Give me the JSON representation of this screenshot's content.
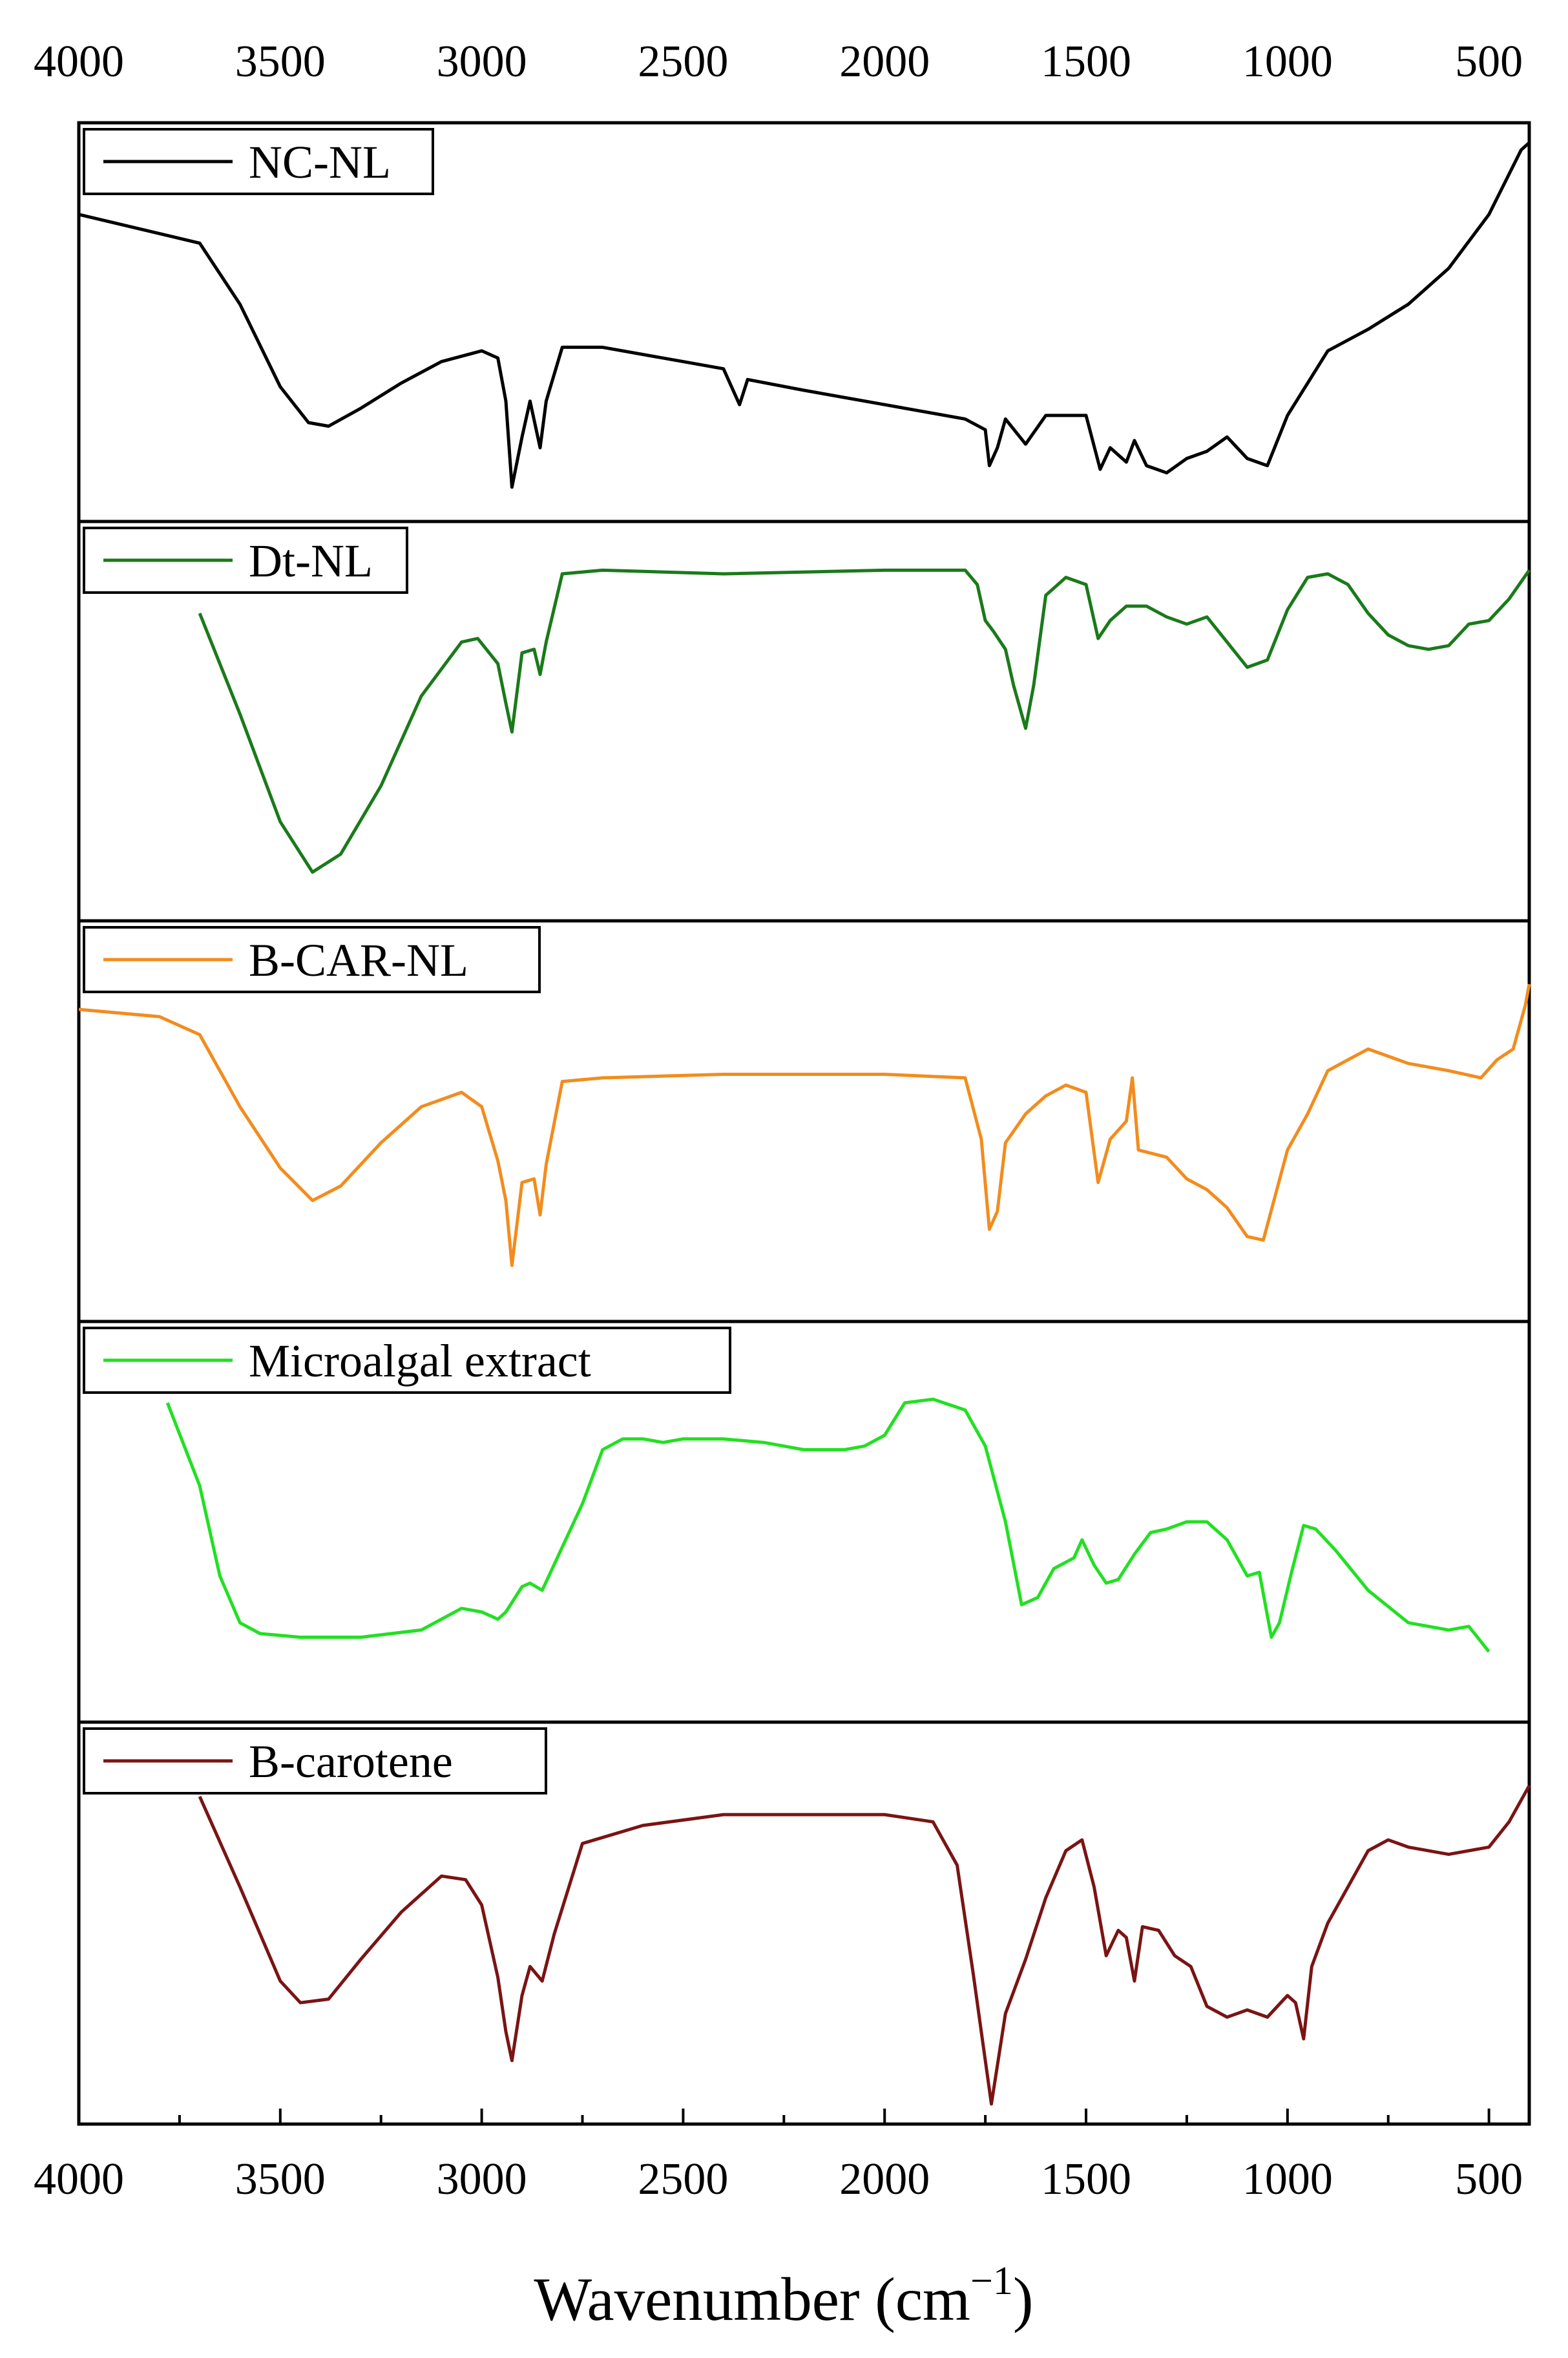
{
  "chart_data": {
    "type": "line",
    "xlabel": "Wavenumber (cm",
    "xlabel_superscript": "−1",
    "xlabel_suffix": ")",
    "xlim": [
      4000,
      400
    ],
    "x_tick_labels": [
      "4000",
      "3500",
      "3000",
      "2500",
      "2000",
      "1500",
      "1000",
      "500"
    ],
    "x_tick_values": [
      4000,
      3500,
      3000,
      2500,
      2000,
      1500,
      1000,
      500
    ],
    "layout": "stacked panels, one spectrum per panel, shared x-axis, no y-axis scale",
    "grid": false,
    "legend_placement": "top-left of each panel",
    "series": [
      {
        "name": "NC-NL",
        "color": "#000000",
        "points": [
          [
            4000,
            0.2
          ],
          [
            3850,
            0.24
          ],
          [
            3700,
            0.28
          ],
          [
            3600,
            0.45
          ],
          [
            3500,
            0.68
          ],
          [
            3430,
            0.78
          ],
          [
            3380,
            0.79
          ],
          [
            3300,
            0.74
          ],
          [
            3200,
            0.67
          ],
          [
            3100,
            0.61
          ],
          [
            3000,
            0.58
          ],
          [
            2960,
            0.6
          ],
          [
            2940,
            0.72
          ],
          [
            2925,
            0.96
          ],
          [
            2900,
            0.82
          ],
          [
            2880,
            0.72
          ],
          [
            2855,
            0.85
          ],
          [
            2840,
            0.72
          ],
          [
            2800,
            0.57
          ],
          [
            2700,
            0.57
          ],
          [
            2500,
            0.61
          ],
          [
            2400,
            0.63
          ],
          [
            2360,
            0.73
          ],
          [
            2340,
            0.66
          ],
          [
            2200,
            0.69
          ],
          [
            2000,
            0.73
          ],
          [
            1800,
            0.77
          ],
          [
            1750,
            0.8
          ],
          [
            1740,
            0.9
          ],
          [
            1720,
            0.85
          ],
          [
            1700,
            0.77
          ],
          [
            1650,
            0.84
          ],
          [
            1600,
            0.76
          ],
          [
            1500,
            0.76
          ],
          [
            1465,
            0.91
          ],
          [
            1440,
            0.85
          ],
          [
            1400,
            0.89
          ],
          [
            1380,
            0.83
          ],
          [
            1350,
            0.9
          ],
          [
            1300,
            0.92
          ],
          [
            1250,
            0.88
          ],
          [
            1200,
            0.86
          ],
          [
            1150,
            0.82
          ],
          [
            1100,
            0.88
          ],
          [
            1050,
            0.9
          ],
          [
            1000,
            0.76
          ],
          [
            900,
            0.58
          ],
          [
            800,
            0.52
          ],
          [
            700,
            0.45
          ],
          [
            600,
            0.35
          ],
          [
            500,
            0.2
          ],
          [
            420,
            0.02
          ],
          [
            400,
            0.0
          ]
        ]
      },
      {
        "name": "Dt-NL",
        "color": "#1a7a1a",
        "points": [
          [
            3700,
            0.2
          ],
          [
            3600,
            0.48
          ],
          [
            3500,
            0.78
          ],
          [
            3420,
            0.92
          ],
          [
            3350,
            0.87
          ],
          [
            3250,
            0.68
          ],
          [
            3150,
            0.43
          ],
          [
            3050,
            0.28
          ],
          [
            3010,
            0.27
          ],
          [
            2960,
            0.34
          ],
          [
            2940,
            0.45
          ],
          [
            2925,
            0.53
          ],
          [
            2900,
            0.31
          ],
          [
            2870,
            0.3
          ],
          [
            2855,
            0.37
          ],
          [
            2840,
            0.28
          ],
          [
            2800,
            0.09
          ],
          [
            2700,
            0.08
          ],
          [
            2400,
            0.09
          ],
          [
            2000,
            0.08
          ],
          [
            1800,
            0.08
          ],
          [
            1770,
            0.12
          ],
          [
            1750,
            0.22
          ],
          [
            1730,
            0.25
          ],
          [
            1700,
            0.3
          ],
          [
            1680,
            0.4
          ],
          [
            1650,
            0.52
          ],
          [
            1630,
            0.4
          ],
          [
            1600,
            0.15
          ],
          [
            1550,
            0.1
          ],
          [
            1500,
            0.12
          ],
          [
            1470,
            0.27
          ],
          [
            1440,
            0.22
          ],
          [
            1400,
            0.18
          ],
          [
            1350,
            0.18
          ],
          [
            1300,
            0.21
          ],
          [
            1250,
            0.23
          ],
          [
            1200,
            0.21
          ],
          [
            1150,
            0.28
          ],
          [
            1100,
            0.35
          ],
          [
            1050,
            0.33
          ],
          [
            1000,
            0.19
          ],
          [
            950,
            0.1
          ],
          [
            900,
            0.09
          ],
          [
            850,
            0.12
          ],
          [
            800,
            0.2
          ],
          [
            750,
            0.26
          ],
          [
            700,
            0.29
          ],
          [
            650,
            0.3
          ],
          [
            600,
            0.29
          ],
          [
            550,
            0.23
          ],
          [
            500,
            0.22
          ],
          [
            450,
            0.16
          ],
          [
            400,
            0.08
          ]
        ]
      },
      {
        "name": "B-CAR-NL",
        "color": "#f28c1e",
        "points": [
          [
            4000,
            0.19
          ],
          [
            3800,
            0.21
          ],
          [
            3700,
            0.26
          ],
          [
            3600,
            0.46
          ],
          [
            3500,
            0.63
          ],
          [
            3420,
            0.72
          ],
          [
            3350,
            0.68
          ],
          [
            3250,
            0.56
          ],
          [
            3150,
            0.46
          ],
          [
            3050,
            0.42
          ],
          [
            3000,
            0.46
          ],
          [
            2960,
            0.61
          ],
          [
            2940,
            0.72
          ],
          [
            2925,
            0.9
          ],
          [
            2900,
            0.67
          ],
          [
            2870,
            0.66
          ],
          [
            2855,
            0.76
          ],
          [
            2840,
            0.62
          ],
          [
            2800,
            0.39
          ],
          [
            2700,
            0.38
          ],
          [
            2400,
            0.37
          ],
          [
            2000,
            0.37
          ],
          [
            1800,
            0.38
          ],
          [
            1760,
            0.55
          ],
          [
            1740,
            0.8
          ],
          [
            1720,
            0.75
          ],
          [
            1700,
            0.56
          ],
          [
            1650,
            0.48
          ],
          [
            1600,
            0.43
          ],
          [
            1550,
            0.4
          ],
          [
            1500,
            0.42
          ],
          [
            1470,
            0.67
          ],
          [
            1440,
            0.55
          ],
          [
            1400,
            0.5
          ],
          [
            1385,
            0.38
          ],
          [
            1370,
            0.58
          ],
          [
            1300,
            0.6
          ],
          [
            1250,
            0.66
          ],
          [
            1200,
            0.69
          ],
          [
            1150,
            0.74
          ],
          [
            1100,
            0.82
          ],
          [
            1060,
            0.83
          ],
          [
            1000,
            0.58
          ],
          [
            950,
            0.48
          ],
          [
            900,
            0.36
          ],
          [
            850,
            0.33
          ],
          [
            800,
            0.3
          ],
          [
            700,
            0.34
          ],
          [
            600,
            0.36
          ],
          [
            520,
            0.38
          ],
          [
            480,
            0.33
          ],
          [
            440,
            0.3
          ],
          [
            410,
            0.18
          ],
          [
            400,
            0.12
          ]
        ]
      },
      {
        "name": "Microalgal extract",
        "color": "#22e022",
        "points": [
          [
            3780,
            0.17
          ],
          [
            3700,
            0.4
          ],
          [
            3650,
            0.65
          ],
          [
            3600,
            0.78
          ],
          [
            3550,
            0.81
          ],
          [
            3450,
            0.82
          ],
          [
            3300,
            0.82
          ],
          [
            3150,
            0.8
          ],
          [
            3050,
            0.74
          ],
          [
            3000,
            0.75
          ],
          [
            2960,
            0.77
          ],
          [
            2940,
            0.75
          ],
          [
            2900,
            0.68
          ],
          [
            2880,
            0.67
          ],
          [
            2850,
            0.69
          ],
          [
            2800,
            0.57
          ],
          [
            2750,
            0.45
          ],
          [
            2700,
            0.3
          ],
          [
            2650,
            0.27
          ],
          [
            2600,
            0.27
          ],
          [
            2550,
            0.28
          ],
          [
            2500,
            0.27
          ],
          [
            2400,
            0.27
          ],
          [
            2300,
            0.28
          ],
          [
            2200,
            0.3
          ],
          [
            2100,
            0.3
          ],
          [
            2050,
            0.29
          ],
          [
            2000,
            0.26
          ],
          [
            1950,
            0.17
          ],
          [
            1880,
            0.16
          ],
          [
            1800,
            0.19
          ],
          [
            1750,
            0.29
          ],
          [
            1700,
            0.5
          ],
          [
            1660,
            0.73
          ],
          [
            1620,
            0.71
          ],
          [
            1580,
            0.63
          ],
          [
            1530,
            0.6
          ],
          [
            1510,
            0.55
          ],
          [
            1480,
            0.62
          ],
          [
            1450,
            0.67
          ],
          [
            1420,
            0.66
          ],
          [
            1380,
            0.59
          ],
          [
            1340,
            0.53
          ],
          [
            1300,
            0.52
          ],
          [
            1250,
            0.5
          ],
          [
            1200,
            0.5
          ],
          [
            1150,
            0.55
          ],
          [
            1100,
            0.65
          ],
          [
            1070,
            0.64
          ],
          [
            1040,
            0.82
          ],
          [
            1020,
            0.78
          ],
          [
            990,
            0.64
          ],
          [
            960,
            0.51
          ],
          [
            930,
            0.52
          ],
          [
            880,
            0.58
          ],
          [
            800,
            0.69
          ],
          [
            700,
            0.78
          ],
          [
            600,
            0.8
          ],
          [
            550,
            0.79
          ],
          [
            500,
            0.86
          ]
        ]
      },
      {
        "name": "B-carotene",
        "color": "#7a1414",
        "points": [
          [
            3700,
            0.15
          ],
          [
            3600,
            0.4
          ],
          [
            3500,
            0.66
          ],
          [
            3450,
            0.72
          ],
          [
            3380,
            0.71
          ],
          [
            3300,
            0.6
          ],
          [
            3200,
            0.47
          ],
          [
            3100,
            0.37
          ],
          [
            3040,
            0.38
          ],
          [
            3000,
            0.45
          ],
          [
            2960,
            0.65
          ],
          [
            2940,
            0.8
          ],
          [
            2925,
            0.88
          ],
          [
            2900,
            0.7
          ],
          [
            2880,
            0.62
          ],
          [
            2850,
            0.66
          ],
          [
            2820,
            0.53
          ],
          [
            2750,
            0.28
          ],
          [
            2600,
            0.23
          ],
          [
            2400,
            0.2
          ],
          [
            2000,
            0.2
          ],
          [
            1880,
            0.22
          ],
          [
            1820,
            0.34
          ],
          [
            1780,
            0.64
          ],
          [
            1750,
            0.88
          ],
          [
            1735,
            1.0
          ],
          [
            1700,
            0.75
          ],
          [
            1650,
            0.6
          ],
          [
            1600,
            0.43
          ],
          [
            1550,
            0.3
          ],
          [
            1510,
            0.27
          ],
          [
            1480,
            0.4
          ],
          [
            1450,
            0.59
          ],
          [
            1420,
            0.52
          ],
          [
            1400,
            0.54
          ],
          [
            1380,
            0.66
          ],
          [
            1360,
            0.51
          ],
          [
            1320,
            0.52
          ],
          [
            1280,
            0.59
          ],
          [
            1240,
            0.62
          ],
          [
            1200,
            0.73
          ],
          [
            1150,
            0.76
          ],
          [
            1100,
            0.74
          ],
          [
            1050,
            0.76
          ],
          [
            1000,
            0.7
          ],
          [
            980,
            0.72
          ],
          [
            960,
            0.82
          ],
          [
            940,
            0.62
          ],
          [
            900,
            0.5
          ],
          [
            850,
            0.4
          ],
          [
            800,
            0.3
          ],
          [
            750,
            0.27
          ],
          [
            700,
            0.29
          ],
          [
            600,
            0.31
          ],
          [
            500,
            0.29
          ],
          [
            450,
            0.22
          ],
          [
            400,
            0.12
          ]
        ]
      }
    ]
  }
}
